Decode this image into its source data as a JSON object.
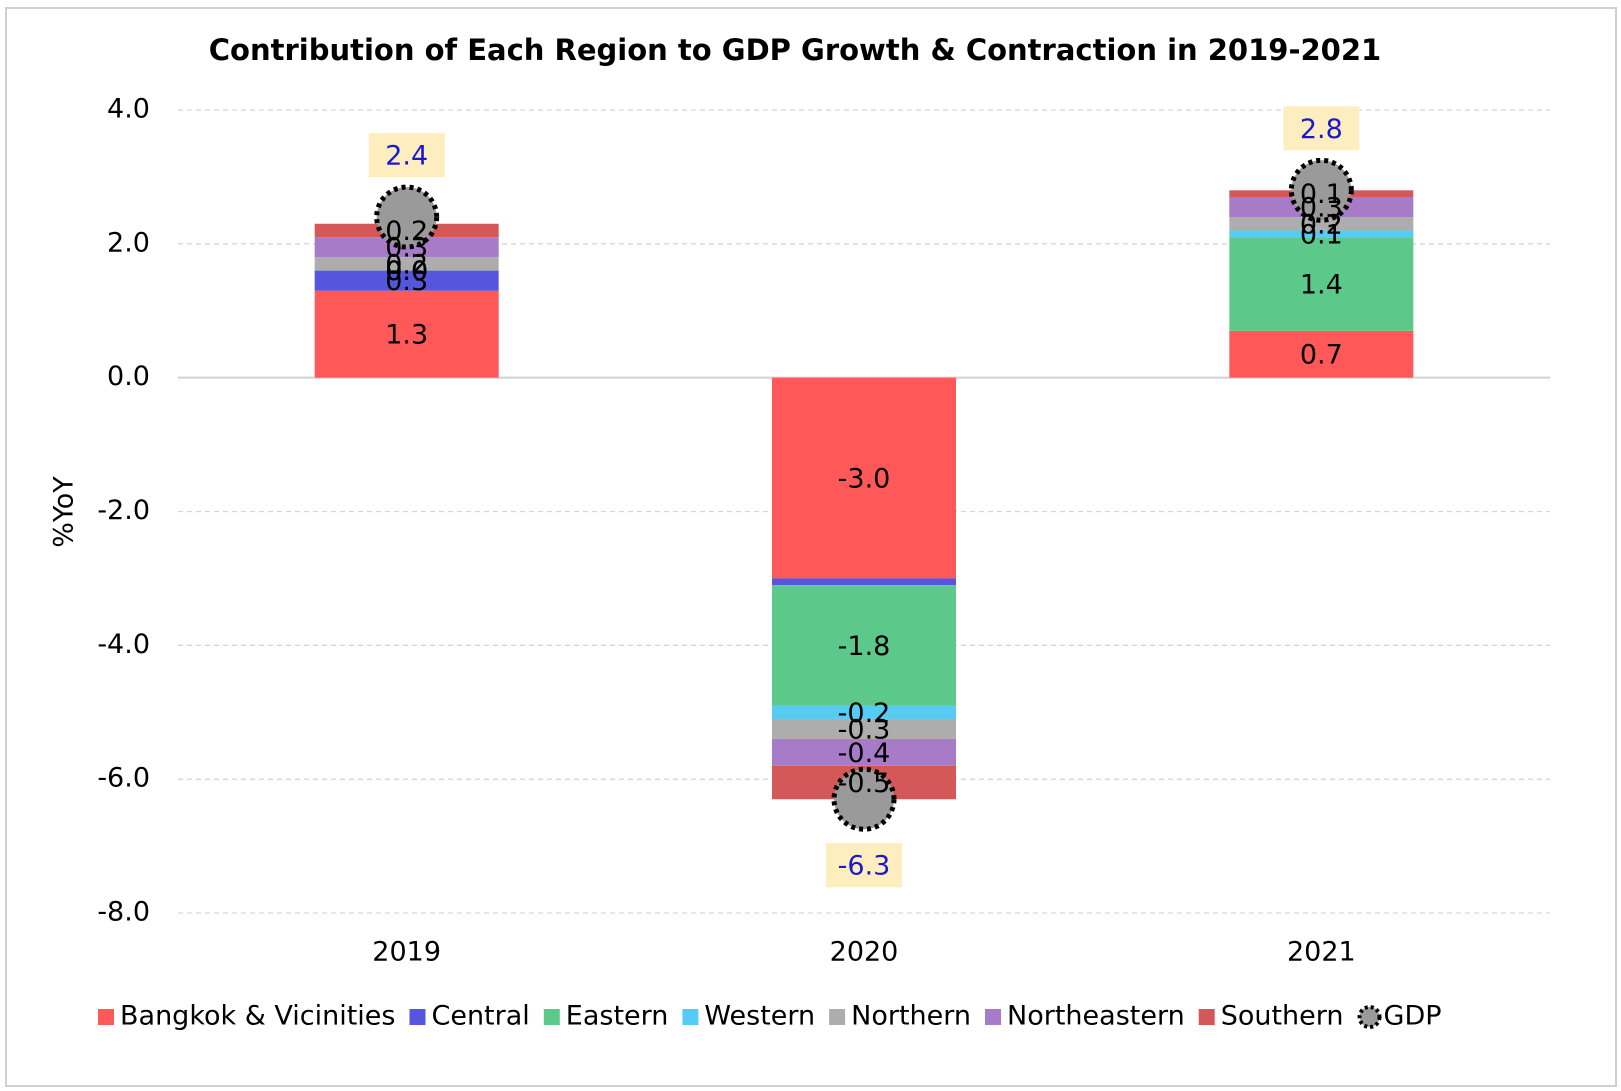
{
  "chart_data": {
    "type": "stacked_bar",
    "title": "Contribution of Each Region to GDP Growth & Contraction in 2019-2021",
    "y_label": "%YoY",
    "categories": [
      "2019",
      "2020",
      "2021"
    ],
    "series": [
      {
        "name": "Bangkok & Vicinities",
        "color": "#fe5858",
        "values": [
          1.3,
          -3.0,
          0.7
        ],
        "value_labels": [
          "1.3",
          "-3.0",
          "0.7"
        ]
      },
      {
        "name": "Central",
        "color": "#5555dd",
        "values": [
          0.3,
          -0.1,
          0.0
        ],
        "value_labels": [
          "0.3",
          null,
          null
        ]
      },
      {
        "name": "Eastern",
        "color": "#5cc98b",
        "values": [
          0.0,
          -1.8,
          1.4
        ],
        "value_labels": [
          "0.0",
          "-1.8",
          "1.4"
        ]
      },
      {
        "name": "Western",
        "color": "#55cdf2",
        "values": [
          0.0,
          -0.2,
          0.1
        ],
        "value_labels": [
          "0.0",
          "-0.2",
          "0.1"
        ]
      },
      {
        "name": "Northern",
        "color": "#adadad",
        "values": [
          0.2,
          -0.3,
          0.2
        ],
        "value_labels": [
          "0.2",
          "-0.3",
          "0.2"
        ]
      },
      {
        "name": "Northeastern",
        "color": "#a77bc8",
        "values": [
          0.3,
          -0.4,
          0.3
        ],
        "value_labels": [
          "0.3",
          "-0.4",
          "0.3"
        ]
      },
      {
        "name": "Southern",
        "color": "#d55858",
        "values": [
          0.2,
          -0.5,
          0.1
        ],
        "value_labels": [
          "0.2",
          "-0.5",
          "0.1"
        ]
      }
    ],
    "gdp": {
      "name": "GDP",
      "color": "#9a9a9a",
      "values": [
        2.4,
        -6.3,
        2.8
      ],
      "value_labels": [
        "2.4",
        "-6.3",
        "2.8"
      ]
    },
    "ylim": [
      -8,
      4
    ],
    "yticks": [
      {
        "value": -8,
        "label": "-8.0"
      },
      {
        "value": -6,
        "label": "-6.0"
      },
      {
        "value": -4,
        "label": "-4.0"
      },
      {
        "value": -2,
        "label": "-2.0"
      },
      {
        "value": 0,
        "label": "0.0"
      },
      {
        "value": 2,
        "label": "2.0"
      },
      {
        "value": 4,
        "label": "4.0"
      }
    ],
    "grid": true,
    "legend": "bottom"
  }
}
